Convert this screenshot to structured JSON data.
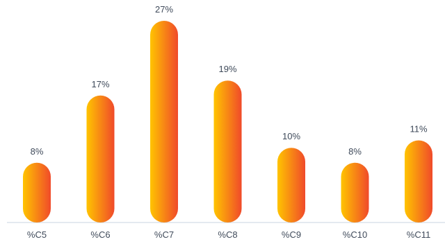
{
  "chart_data": {
    "type": "bar",
    "categories": [
      "%C5",
      "%C6",
      "%C7",
      "%C8",
      "%C9",
      "%C10",
      "%C11"
    ],
    "values": [
      8,
      17,
      27,
      19,
      10,
      8,
      11
    ],
    "data_labels": [
      "8%",
      "17%",
      "27%",
      "19%",
      "10%",
      "8%",
      "11%"
    ],
    "title": "",
    "xlabel": "",
    "ylabel": "",
    "ylim": [
      0,
      27
    ],
    "grid": false,
    "legend": "none",
    "colors": {
      "gradient_start": "#FFC400",
      "gradient_end": "#F04A2A",
      "axis": "#c9d3e0",
      "text": "#3f4a5a"
    }
  }
}
